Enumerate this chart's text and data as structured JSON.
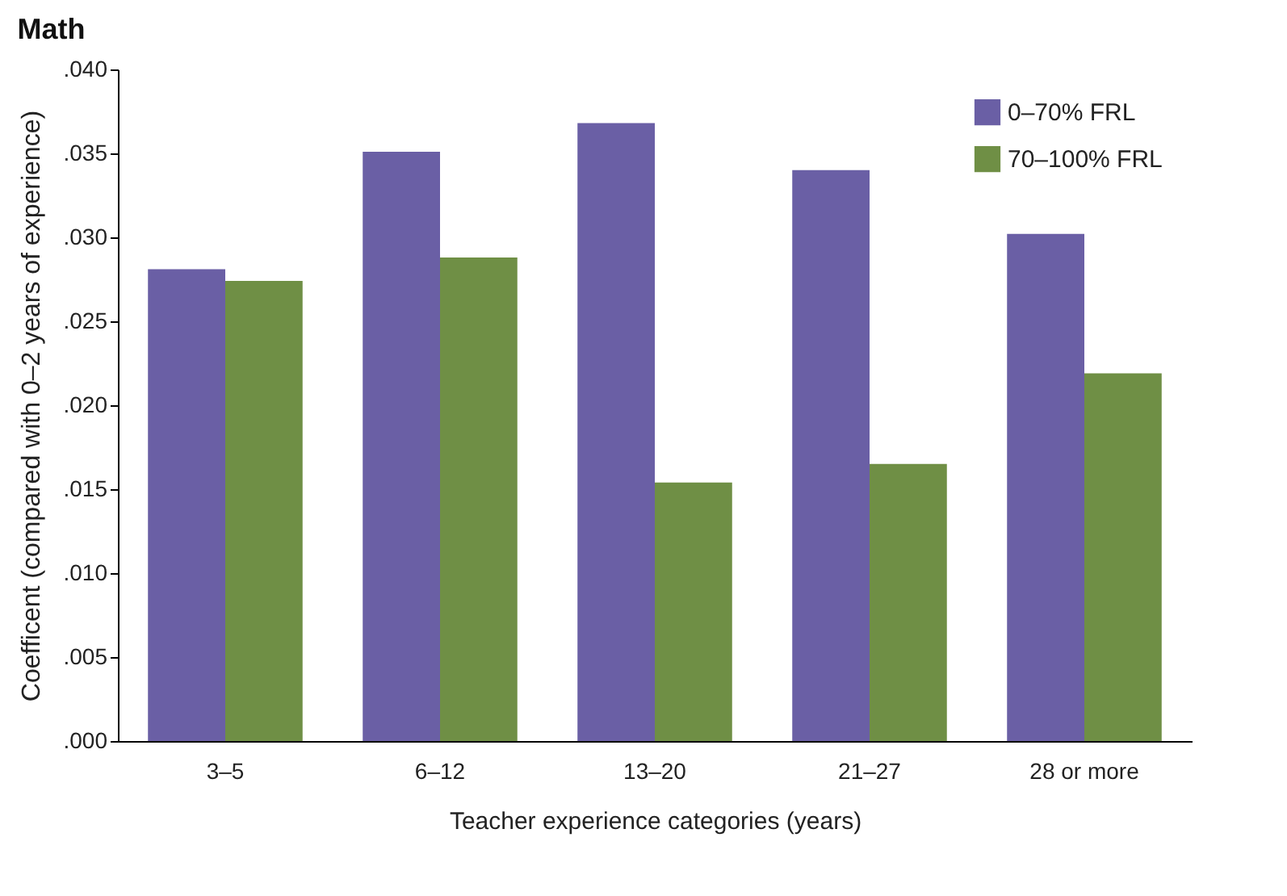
{
  "chart_data": {
    "type": "bar",
    "title": "Math",
    "xlabel": "Teacher experience categories (years)",
    "ylabel": "Coefficent (compared with 0–2 years of experience)",
    "categories": [
      "3–5",
      "6–12",
      "13–20",
      "21–27",
      "28 or more"
    ],
    "series": [
      {
        "name": "0–70% FRL",
        "color": "#6a5fa5",
        "values": [
          0.0281,
          0.0351,
          0.0368,
          0.034,
          0.0302
        ]
      },
      {
        "name": "70–100% FRL",
        "color": "#6f8f45",
        "values": [
          0.0274,
          0.0288,
          0.0154,
          0.0165,
          0.0219
        ]
      }
    ],
    "ylim": [
      0,
      0.04
    ],
    "yticks": [
      {
        "value": 0,
        "label": ".000"
      },
      {
        "value": 0.005,
        "label": ".005"
      },
      {
        "value": 0.01,
        "label": ".010"
      },
      {
        "value": 0.015,
        "label": ".015"
      },
      {
        "value": 0.02,
        "label": ".020"
      },
      {
        "value": 0.025,
        "label": ".025"
      },
      {
        "value": 0.03,
        "label": ".030"
      },
      {
        "value": 0.035,
        "label": ".035"
      },
      {
        "value": 0.04,
        "label": ".040"
      }
    ],
    "grid": false,
    "legend": "top right"
  }
}
